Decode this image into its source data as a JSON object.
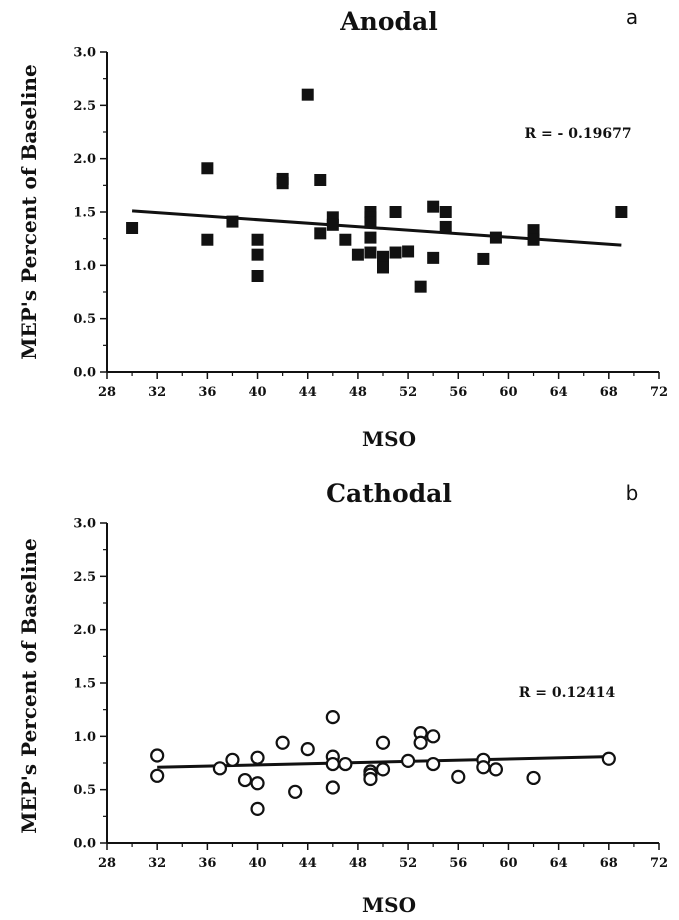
{
  "chart_data": [
    {
      "type": "scatter",
      "title": "Anodal",
      "panel_label": "a",
      "xlabel": "MSO",
      "ylabel": "MEP's Percent of Baseline",
      "xlim": [
        28,
        72
      ],
      "ylim": [
        0,
        3
      ],
      "x_ticks": [
        "28",
        "32",
        "36",
        "40",
        "44",
        "48",
        "52",
        "56",
        "60",
        "64",
        "68",
        "72"
      ],
      "y_ticks": [
        "0.0",
        "0.5",
        "1.0",
        "1.5",
        "2.0",
        "2.5",
        "3.0"
      ],
      "annotation": "R = - 0.19677",
      "marker": "filled-square",
      "points": [
        {
          "x": 30,
          "y": 1.35
        },
        {
          "x": 36,
          "y": 1.91
        },
        {
          "x": 36,
          "y": 1.24
        },
        {
          "x": 38,
          "y": 1.41
        },
        {
          "x": 40,
          "y": 1.24
        },
        {
          "x": 40,
          "y": 1.1
        },
        {
          "x": 40,
          "y": 0.9
        },
        {
          "x": 42,
          "y": 1.81
        },
        {
          "x": 42,
          "y": 1.77
        },
        {
          "x": 44,
          "y": 2.6
        },
        {
          "x": 45,
          "y": 1.8
        },
        {
          "x": 45,
          "y": 1.3
        },
        {
          "x": 46,
          "y": 1.45
        },
        {
          "x": 46,
          "y": 1.38
        },
        {
          "x": 47,
          "y": 1.24
        },
        {
          "x": 48,
          "y": 1.1
        },
        {
          "x": 49,
          "y": 1.5
        },
        {
          "x": 49,
          "y": 1.45
        },
        {
          "x": 49,
          "y": 1.4
        },
        {
          "x": 49,
          "y": 1.26
        },
        {
          "x": 49,
          "y": 1.12
        },
        {
          "x": 50,
          "y": 1.08
        },
        {
          "x": 50,
          "y": 0.98
        },
        {
          "x": 51,
          "y": 1.5
        },
        {
          "x": 51,
          "y": 1.12
        },
        {
          "x": 52,
          "y": 1.13
        },
        {
          "x": 53,
          "y": 0.8
        },
        {
          "x": 54,
          "y": 1.55
        },
        {
          "x": 54,
          "y": 1.07
        },
        {
          "x": 55,
          "y": 1.5
        },
        {
          "x": 55,
          "y": 1.36
        },
        {
          "x": 58,
          "y": 1.06
        },
        {
          "x": 59,
          "y": 1.26
        },
        {
          "x": 62,
          "y": 1.33
        },
        {
          "x": 62,
          "y": 1.24
        },
        {
          "x": 69,
          "y": 1.5
        }
      ],
      "trendline": {
        "x": [
          30,
          69
        ],
        "y": [
          1.51,
          1.19
        ]
      }
    },
    {
      "type": "scatter",
      "title": "Cathodal",
      "panel_label": "b",
      "xlabel": "MSO",
      "ylabel": "MEP's Percent of Baseline",
      "xlim": [
        28,
        72
      ],
      "ylim": [
        0,
        3
      ],
      "x_ticks": [
        "28",
        "32",
        "36",
        "40",
        "44",
        "48",
        "52",
        "56",
        "60",
        "64",
        "68",
        "72"
      ],
      "y_ticks": [
        "0.0",
        "0.5",
        "1.0",
        "1.5",
        "2.0",
        "2.5",
        "3.0"
      ],
      "annotation": "R = 0.12414",
      "marker": "open-circle",
      "points": [
        {
          "x": 32,
          "y": 0.82
        },
        {
          "x": 32,
          "y": 0.63
        },
        {
          "x": 37,
          "y": 0.7
        },
        {
          "x": 38,
          "y": 0.78
        },
        {
          "x": 39,
          "y": 0.59
        },
        {
          "x": 40,
          "y": 0.8
        },
        {
          "x": 40,
          "y": 0.56
        },
        {
          "x": 40,
          "y": 0.32
        },
        {
          "x": 42,
          "y": 0.94
        },
        {
          "x": 43,
          "y": 0.48
        },
        {
          "x": 44,
          "y": 0.88
        },
        {
          "x": 46,
          "y": 1.18
        },
        {
          "x": 46,
          "y": 0.81
        },
        {
          "x": 46,
          "y": 0.74
        },
        {
          "x": 46,
          "y": 0.52
        },
        {
          "x": 47,
          "y": 0.74
        },
        {
          "x": 49,
          "y": 0.67
        },
        {
          "x": 49,
          "y": 0.64
        },
        {
          "x": 49,
          "y": 0.6
        },
        {
          "x": 50,
          "y": 0.94
        },
        {
          "x": 50,
          "y": 0.69
        },
        {
          "x": 52,
          "y": 0.77
        },
        {
          "x": 53,
          "y": 1.03
        },
        {
          "x": 53,
          "y": 0.94
        },
        {
          "x": 54,
          "y": 1.0
        },
        {
          "x": 54,
          "y": 0.74
        },
        {
          "x": 56,
          "y": 0.62
        },
        {
          "x": 58,
          "y": 0.78
        },
        {
          "x": 58,
          "y": 0.71
        },
        {
          "x": 59,
          "y": 0.69
        },
        {
          "x": 62,
          "y": 0.61
        },
        {
          "x": 68,
          "y": 0.79
        }
      ],
      "trendline": {
        "x": [
          32,
          68
        ],
        "y": [
          0.71,
          0.81
        ]
      }
    }
  ]
}
